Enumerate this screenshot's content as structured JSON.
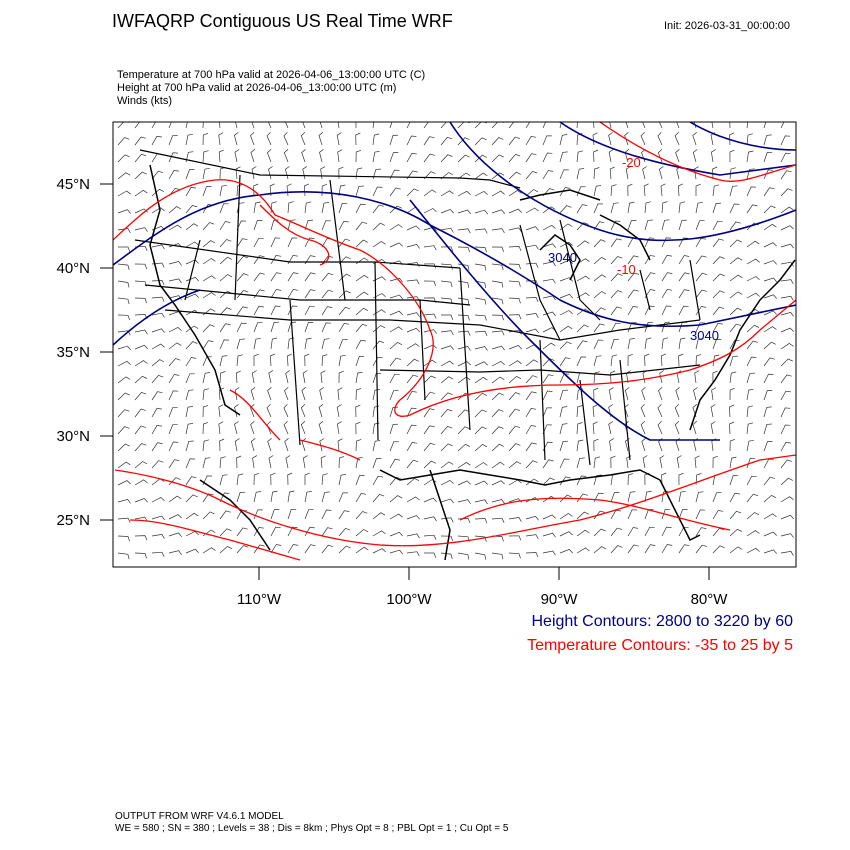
{
  "header": {
    "title": "IWFAQRP Contiguous US Real Time WRF",
    "init": "Init: 2026-03-31_00:00:00"
  },
  "fields": [
    "Temperature at 700 hPa valid at 2026-04-06_13:00:00 UTC   (C)",
    "Height at 700 hPa valid at 2026-04-06_13:00:00 UTC   (m)",
    "Winds   (kts)"
  ],
  "axes": {
    "lat_labels": [
      "45°N",
      "40°N",
      "35°N",
      "30°N",
      "25°N"
    ],
    "lon_labels": [
      "110°W",
      "100°W",
      "90°W",
      "80°W"
    ]
  },
  "contour_labels": {
    "height": "3040",
    "height2": "3040",
    "temp": "-20",
    "temp2": "-10"
  },
  "legend": {
    "height": "Height Contours: 2800 to 3220 by 60",
    "temperature": "Temperature Contours: -35 to 25 by 5"
  },
  "footer": {
    "line1": "OUTPUT FROM WRF V4.6.1 MODEL",
    "line2": "WE = 580 ; SN = 380 ; Levels = 38 ; Dis = 8km ; Phys Opt = 8 ; PBL Opt = 1 ; Cu Opt = 5"
  },
  "colors": {
    "height": "#000080",
    "temperature": "#ff0000",
    "border": "#000000"
  }
}
